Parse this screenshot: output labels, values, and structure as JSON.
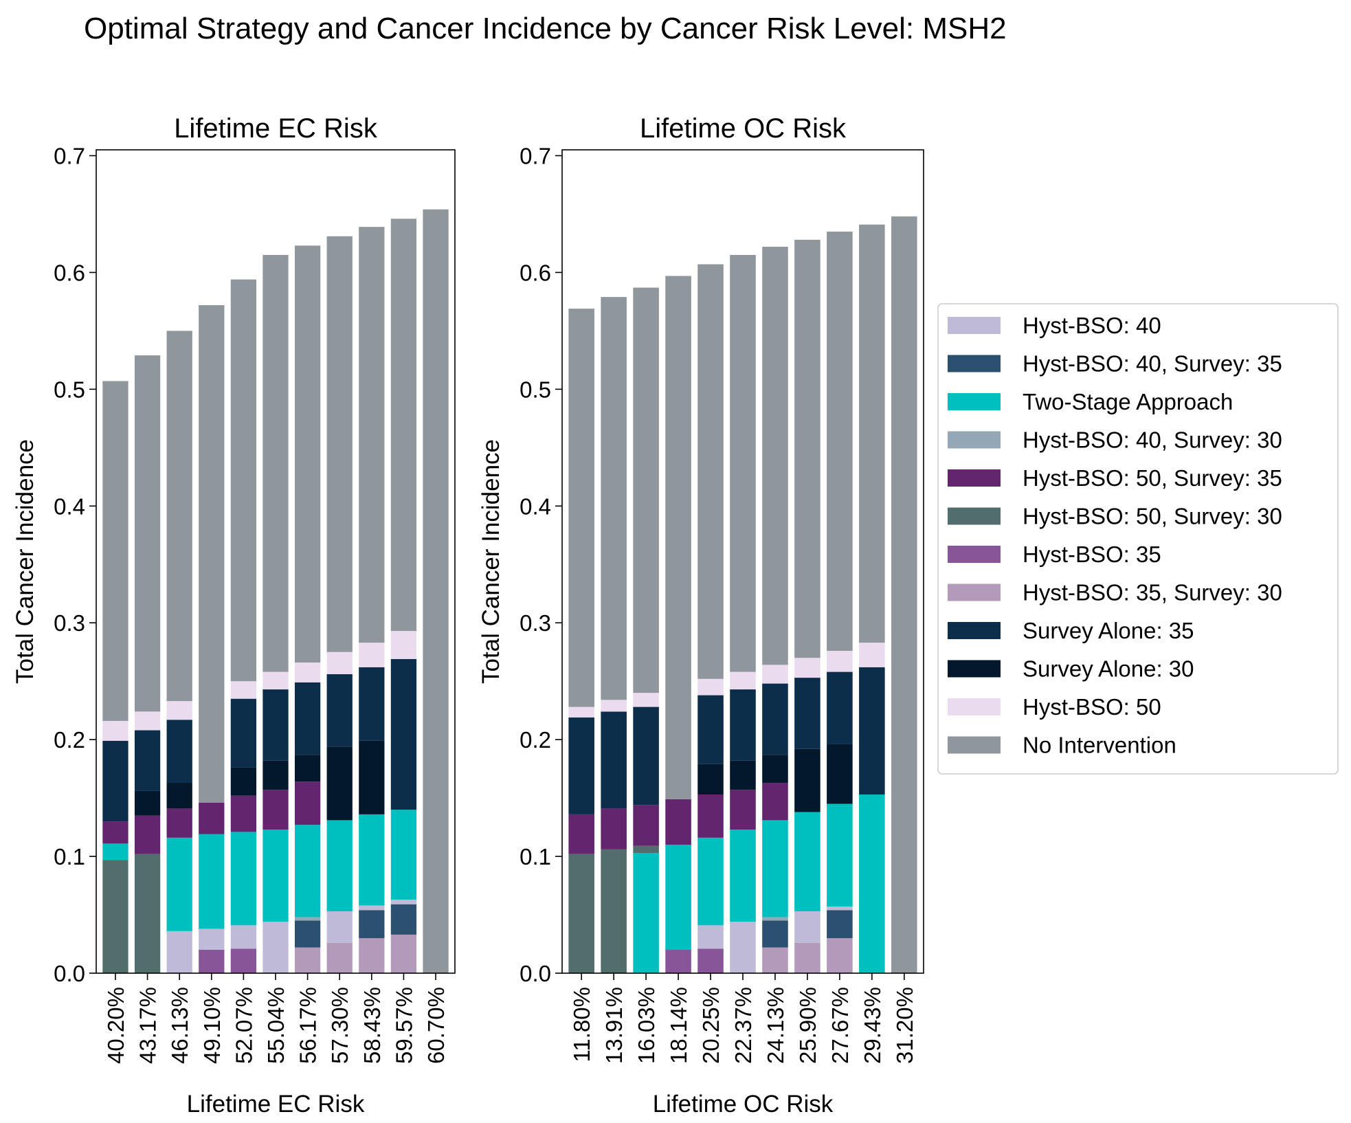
{
  "figure": {
    "title": "Optimal Strategy and Cancer Incidence by Cancer Risk Level: MSH2"
  },
  "legend": {
    "placement": "right",
    "items": [
      {
        "label": "Hyst-BSO: 40",
        "color": "#bebad8"
      },
      {
        "label": "Hyst-BSO: 40, Survey: 35",
        "color": "#2c5170"
      },
      {
        "label": "Two-Stage Approach",
        "color": "#00bfbf"
      },
      {
        "label": "Hyst-BSO: 40, Survey: 30",
        "color": "#94a7b6"
      },
      {
        "label": "Hyst-BSO: 50, Survey: 35",
        "color": "#62256e"
      },
      {
        "label": "Hyst-BSO: 50, Survey: 30",
        "color": "#526e6c"
      },
      {
        "label": "Hyst-BSO: 35",
        "color": "#885698"
      },
      {
        "label": "Hyst-BSO: 35, Survey: 30",
        "color": "#b39abb"
      },
      {
        "label": "Survey Alone: 35",
        "color": "#0c2e4b"
      },
      {
        "label": "Survey Alone: 30",
        "color": "#04182c"
      },
      {
        "label": "Hyst-BSO: 50",
        "color": "#eadcee"
      },
      {
        "label": "No Intervention",
        "color": "#8f979d"
      }
    ]
  },
  "chart_data": [
    {
      "type": "bar",
      "stacked": true,
      "title": "Lifetime EC Risk",
      "xlabel": "Lifetime EC Risk",
      "ylabel": "Total Cancer Incidence",
      "ylim": [
        0,
        0.705
      ],
      "yticks": [
        "0.0",
        "0.1",
        "0.2",
        "0.3",
        "0.4",
        "0.5",
        "0.6",
        "0.7"
      ],
      "grid": false,
      "categories": [
        "40.20%",
        "43.17%",
        "46.13%",
        "49.10%",
        "52.07%",
        "55.04%",
        "56.17%",
        "57.30%",
        "58.43%",
        "59.57%",
        "60.70%"
      ],
      "bars": [
        [
          {
            "s": "Hyst-BSO: 50, Survey: 30",
            "v": 0.097
          },
          {
            "s": "Two-Stage Approach",
            "v": 0.014
          },
          {
            "s": "Hyst-BSO: 50, Survey: 35",
            "v": 0.019
          },
          {
            "s": "Survey Alone: 35",
            "v": 0.069
          },
          {
            "s": "Hyst-BSO: 50",
            "v": 0.017
          },
          {
            "s": "No Intervention",
            "v": 0.291
          }
        ],
        [
          {
            "s": "Hyst-BSO: 50, Survey: 30",
            "v": 0.102
          },
          {
            "s": "Hyst-BSO: 50, Survey: 35",
            "v": 0.033
          },
          {
            "s": "Survey Alone: 30",
            "v": 0.021
          },
          {
            "s": "Survey Alone: 35",
            "v": 0.052
          },
          {
            "s": "Hyst-BSO: 50",
            "v": 0.016
          },
          {
            "s": "No Intervention",
            "v": 0.305
          }
        ],
        [
          {
            "s": "Hyst-BSO: 40",
            "v": 0.036
          },
          {
            "s": "Two-Stage Approach",
            "v": 0.08
          },
          {
            "s": "Hyst-BSO: 50, Survey: 35",
            "v": 0.025
          },
          {
            "s": "Survey Alone: 30",
            "v": 0.022
          },
          {
            "s": "Survey Alone: 35",
            "v": 0.054
          },
          {
            "s": "Hyst-BSO: 50",
            "v": 0.016
          },
          {
            "s": "No Intervention",
            "v": 0.317
          }
        ],
        [
          {
            "s": "Hyst-BSO: 35",
            "v": 0.02
          },
          {
            "s": "Hyst-BSO: 40",
            "v": 0.018
          },
          {
            "s": "Two-Stage Approach",
            "v": 0.081
          },
          {
            "s": "Hyst-BSO: 50, Survey: 35",
            "v": 0.027
          },
          {
            "s": "No Intervention",
            "v": 0.426
          }
        ],
        [
          {
            "s": "Hyst-BSO: 35",
            "v": 0.021
          },
          {
            "s": "Hyst-BSO: 40",
            "v": 0.02
          },
          {
            "s": "Two-Stage Approach",
            "v": 0.08
          },
          {
            "s": "Hyst-BSO: 50, Survey: 35",
            "v": 0.031
          },
          {
            "s": "Survey Alone: 30",
            "v": 0.024
          },
          {
            "s": "Survey Alone: 35",
            "v": 0.059
          },
          {
            "s": "Hyst-BSO: 50",
            "v": 0.015
          },
          {
            "s": "No Intervention",
            "v": 0.344
          }
        ],
        [
          {
            "s": "Hyst-BSO: 40",
            "v": 0.044
          },
          {
            "s": "Two-Stage Approach",
            "v": 0.079
          },
          {
            "s": "Hyst-BSO: 50, Survey: 35",
            "v": 0.034
          },
          {
            "s": "Survey Alone: 30",
            "v": 0.025
          },
          {
            "s": "Survey Alone: 35",
            "v": 0.061
          },
          {
            "s": "Hyst-BSO: 50",
            "v": 0.015
          },
          {
            "s": "No Intervention",
            "v": 0.357
          }
        ],
        [
          {
            "s": "Hyst-BSO: 35, Survey: 30",
            "v": 0.022
          },
          {
            "s": "Hyst-BSO: 40, Survey: 35",
            "v": 0.023
          },
          {
            "s": "Hyst-BSO: 40, Survey: 30",
            "v": 0.003
          },
          {
            "s": "Two-Stage Approach",
            "v": 0.079
          },
          {
            "s": "Hyst-BSO: 50, Survey: 35",
            "v": 0.037
          },
          {
            "s": "Survey Alone: 30",
            "v": 0.023
          },
          {
            "s": "Survey Alone: 35",
            "v": 0.062
          },
          {
            "s": "Hyst-BSO: 50",
            "v": 0.017
          },
          {
            "s": "No Intervention",
            "v": 0.357
          }
        ],
        [
          {
            "s": "Hyst-BSO: 35, Survey: 30",
            "v": 0.026
          },
          {
            "s": "Hyst-BSO: 40",
            "v": 0.027
          },
          {
            "s": "Two-Stage Approach",
            "v": 0.078
          },
          {
            "s": "Survey Alone: 30",
            "v": 0.063
          },
          {
            "s": "Survey Alone: 35",
            "v": 0.062
          },
          {
            "s": "Hyst-BSO: 50",
            "v": 0.019
          },
          {
            "s": "No Intervention",
            "v": 0.356
          }
        ],
        [
          {
            "s": "Hyst-BSO: 35, Survey: 30",
            "v": 0.03
          },
          {
            "s": "Hyst-BSO: 40, Survey: 35",
            "v": 0.024
          },
          {
            "s": "Hyst-BSO: 40",
            "v": 0.004
          },
          {
            "s": "Two-Stage Approach",
            "v": 0.078
          },
          {
            "s": "Survey Alone: 30",
            "v": 0.063
          },
          {
            "s": "Survey Alone: 35",
            "v": 0.063
          },
          {
            "s": "Hyst-BSO: 50",
            "v": 0.021
          },
          {
            "s": "No Intervention",
            "v": 0.356
          }
        ],
        [
          {
            "s": "Hyst-BSO: 35, Survey: 30",
            "v": 0.033
          },
          {
            "s": "Hyst-BSO: 40, Survey: 35",
            "v": 0.026
          },
          {
            "s": "Hyst-BSO: 40",
            "v": 0.004
          },
          {
            "s": "Two-Stage Approach",
            "v": 0.077
          },
          {
            "s": "Survey Alone: 35",
            "v": 0.129
          },
          {
            "s": "Hyst-BSO: 50",
            "v": 0.024
          },
          {
            "s": "No Intervention",
            "v": 0.353
          }
        ],
        [
          {
            "s": "No Intervention",
            "v": 0.654
          }
        ]
      ]
    },
    {
      "type": "bar",
      "stacked": true,
      "title": "Lifetime OC Risk",
      "xlabel": "Lifetime OC Risk",
      "ylabel": "Total Cancer Incidence",
      "ylim": [
        0,
        0.705
      ],
      "yticks": [
        "0.0",
        "0.1",
        "0.2",
        "0.3",
        "0.4",
        "0.5",
        "0.6",
        "0.7"
      ],
      "grid": false,
      "categories": [
        "11.80%",
        "13.91%",
        "16.03%",
        "18.14%",
        "20.25%",
        "22.37%",
        "24.13%",
        "25.90%",
        "27.67%",
        "29.43%",
        "31.20%"
      ],
      "bars": [
        [
          {
            "s": "Hyst-BSO: 50, Survey: 30",
            "v": 0.102
          },
          {
            "s": "Hyst-BSO: 50, Survey: 35",
            "v": 0.034
          },
          {
            "s": "Survey Alone: 35",
            "v": 0.083
          },
          {
            "s": "Hyst-BSO: 50",
            "v": 0.009
          },
          {
            "s": "No Intervention",
            "v": 0.341
          }
        ],
        [
          {
            "s": "Hyst-BSO: 50, Survey: 30",
            "v": 0.106
          },
          {
            "s": "Hyst-BSO: 50, Survey: 35",
            "v": 0.035
          },
          {
            "s": "Survey Alone: 35",
            "v": 0.083
          },
          {
            "s": "Hyst-BSO: 50",
            "v": 0.01
          },
          {
            "s": "No Intervention",
            "v": 0.345
          }
        ],
        [
          {
            "s": "Two-Stage Approach",
            "v": 0.103
          },
          {
            "s": "Hyst-BSO: 50, Survey: 30",
            "v": 0.006
          },
          {
            "s": "Hyst-BSO: 50, Survey: 35",
            "v": 0.035
          },
          {
            "s": "Survey Alone: 35",
            "v": 0.084
          },
          {
            "s": "Hyst-BSO: 50",
            "v": 0.012
          },
          {
            "s": "No Intervention",
            "v": 0.347
          }
        ],
        [
          {
            "s": "Hyst-BSO: 35",
            "v": 0.02
          },
          {
            "s": "Two-Stage Approach",
            "v": 0.09
          },
          {
            "s": "Hyst-BSO: 50, Survey: 35",
            "v": 0.039
          },
          {
            "s": "No Intervention",
            "v": 0.448
          }
        ],
        [
          {
            "s": "Hyst-BSO: 35",
            "v": 0.021
          },
          {
            "s": "Hyst-BSO: 40",
            "v": 0.02
          },
          {
            "s": "Two-Stage Approach",
            "v": 0.075
          },
          {
            "s": "Hyst-BSO: 50, Survey: 35",
            "v": 0.037
          },
          {
            "s": "Survey Alone: 30",
            "v": 0.026
          },
          {
            "s": "Survey Alone: 35",
            "v": 0.059
          },
          {
            "s": "Hyst-BSO: 50",
            "v": 0.014
          },
          {
            "s": "No Intervention",
            "v": 0.355
          }
        ],
        [
          {
            "s": "Hyst-BSO: 40",
            "v": 0.044
          },
          {
            "s": "Two-Stage Approach",
            "v": 0.079
          },
          {
            "s": "Hyst-BSO: 50, Survey: 35",
            "v": 0.034
          },
          {
            "s": "Survey Alone: 30",
            "v": 0.025
          },
          {
            "s": "Survey Alone: 35",
            "v": 0.061
          },
          {
            "s": "Hyst-BSO: 50",
            "v": 0.015
          },
          {
            "s": "No Intervention",
            "v": 0.357
          }
        ],
        [
          {
            "s": "Hyst-BSO: 35, Survey: 30",
            "v": 0.022
          },
          {
            "s": "Hyst-BSO: 40, Survey: 35",
            "v": 0.023
          },
          {
            "s": "Hyst-BSO: 40, Survey: 30",
            "v": 0.003
          },
          {
            "s": "Two-Stage Approach",
            "v": 0.083
          },
          {
            "s": "Hyst-BSO: 50, Survey: 35",
            "v": 0.032
          },
          {
            "s": "Survey Alone: 30",
            "v": 0.024
          },
          {
            "s": "Survey Alone: 35",
            "v": 0.061
          },
          {
            "s": "Hyst-BSO: 50",
            "v": 0.016
          },
          {
            "s": "No Intervention",
            "v": 0.358
          }
        ],
        [
          {
            "s": "Hyst-BSO: 35, Survey: 30",
            "v": 0.026
          },
          {
            "s": "Hyst-BSO: 40",
            "v": 0.027
          },
          {
            "s": "Two-Stage Approach",
            "v": 0.085
          },
          {
            "s": "Survey Alone: 30",
            "v": 0.054
          },
          {
            "s": "Survey Alone: 35",
            "v": 0.061
          },
          {
            "s": "Hyst-BSO: 50",
            "v": 0.017
          },
          {
            "s": "No Intervention",
            "v": 0.358
          }
        ],
        [
          {
            "s": "Hyst-BSO: 35, Survey: 30",
            "v": 0.03
          },
          {
            "s": "Hyst-BSO: 40, Survey: 35",
            "v": 0.024
          },
          {
            "s": "Hyst-BSO: 40",
            "v": 0.003
          },
          {
            "s": "Two-Stage Approach",
            "v": 0.088
          },
          {
            "s": "Survey Alone: 30",
            "v": 0.051
          },
          {
            "s": "Survey Alone: 35",
            "v": 0.062
          },
          {
            "s": "Hyst-BSO: 50",
            "v": 0.018
          },
          {
            "s": "No Intervention",
            "v": 0.359
          }
        ],
        [
          {
            "s": "Two-Stage Approach",
            "v": 0.153
          },
          {
            "s": "Survey Alone: 35",
            "v": 0.109
          },
          {
            "s": "Hyst-BSO: 50",
            "v": 0.021
          },
          {
            "s": "No Intervention",
            "v": 0.358
          }
        ],
        [
          {
            "s": "No Intervention",
            "v": 0.648
          }
        ]
      ]
    }
  ]
}
